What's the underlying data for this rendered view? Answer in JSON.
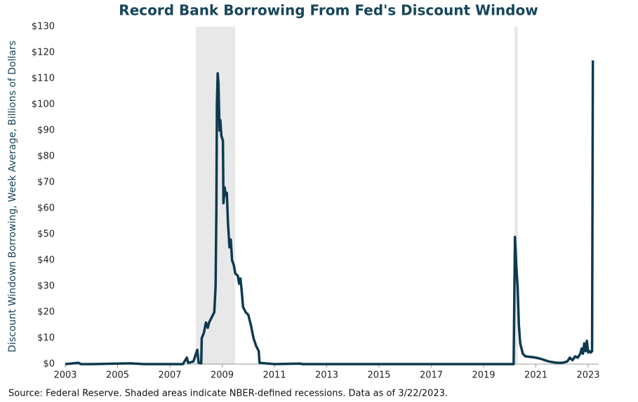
{
  "chart_data": {
    "type": "line",
    "title": "Record Bank Borrowing From Fed's Discount Window",
    "y_label": "Discount Windown Borrowing, Week Average, Billions of Dollars",
    "source": "Source: Federal Reserve. Shaded areas indicate NBER-defined recessions. Data as of 3/22/2023.",
    "recessions": [
      [
        2007.99,
        2009.5
      ],
      [
        2020.18,
        2020.31
      ]
    ],
    "recession_color": "#e8e8e8",
    "x": [
      2003.0,
      2003.5,
      2003.6,
      2004.0,
      2005.5,
      2006.0,
      2007.5,
      2007.65,
      2007.7,
      2007.9,
      2008.0,
      2008.05,
      2008.1,
      2008.2,
      2008.22,
      2008.3,
      2008.38,
      2008.45,
      2008.5,
      2008.6,
      2008.7,
      2008.75,
      2008.78,
      2008.8,
      2008.83,
      2008.86,
      2008.9,
      2008.93,
      2008.97,
      2009.03,
      2009.05,
      2009.1,
      2009.13,
      2009.18,
      2009.22,
      2009.28,
      2009.33,
      2009.38,
      2009.45,
      2009.5,
      2009.6,
      2009.65,
      2009.7,
      2009.75,
      2009.8,
      2009.9,
      2010.0,
      2010.1,
      2010.2,
      2010.3,
      2010.4,
      2010.43,
      2011.0,
      2012.0,
      2012.05,
      2020.15,
      2020.2,
      2020.25,
      2020.3,
      2020.35,
      2020.4,
      2020.5,
      2020.6,
      2021.0,
      2021.2,
      2021.5,
      2021.8,
      2022.0,
      2022.2,
      2022.3,
      2022.4,
      2022.5,
      2022.6,
      2022.7,
      2022.75,
      2022.8,
      2022.85,
      2022.9,
      2022.95,
      2023.0,
      2023.05,
      2023.1,
      2023.15,
      2023.18
    ],
    "series": [
      {
        "name": "Discount window borrowing",
        "color": "#0d3a4f",
        "values": [
          0,
          0.5,
          0,
          0,
          0.3,
          0,
          0,
          2.5,
          0.5,
          1,
          4,
          5.5,
          0.5,
          0.3,
          10,
          12,
          16,
          14,
          16,
          18,
          20,
          30,
          60,
          100,
          112,
          108,
          90,
          94,
          88,
          86,
          62,
          68,
          65,
          66,
          55,
          45,
          48,
          40,
          38,
          35,
          34,
          31,
          33,
          28,
          22,
          20,
          19,
          15,
          10,
          7,
          5,
          0.5,
          0,
          0.2,
          0,
          0,
          49,
          38,
          30,
          15,
          8,
          4,
          3,
          2.5,
          2,
          1,
          0.5,
          0.5,
          1,
          2.5,
          1.5,
          3,
          2.5,
          4,
          6,
          4,
          8,
          5,
          9,
          4.5,
          5,
          4.5,
          5,
          117
        ]
      }
    ],
    "xlim": [
      2003,
      2023.4
    ],
    "xticks": [
      2003,
      2005,
      2007,
      2009,
      2011,
      2013,
      2015,
      2017,
      2019,
      2021,
      2023
    ],
    "ylim": [
      0,
      130
    ],
    "yticks": [
      {
        "value": 0,
        "label": "$0"
      },
      {
        "value": 10,
        "label": "$10"
      },
      {
        "value": 20,
        "label": "$20"
      },
      {
        "value": 30,
        "label": "$30"
      },
      {
        "value": 40,
        "label": "$40"
      },
      {
        "value": 50,
        "label": "$50"
      },
      {
        "value": 60,
        "label": "$60"
      },
      {
        "value": 70,
        "label": "$70"
      },
      {
        "value": 80,
        "label": "$80"
      },
      {
        "value": 90,
        "label": "$90"
      },
      {
        "value": 100,
        "label": "$100"
      },
      {
        "value": 110,
        "label": "$110"
      },
      {
        "value": 120,
        "label": "$120"
      },
      {
        "value": 130,
        "label": "$130"
      }
    ]
  }
}
